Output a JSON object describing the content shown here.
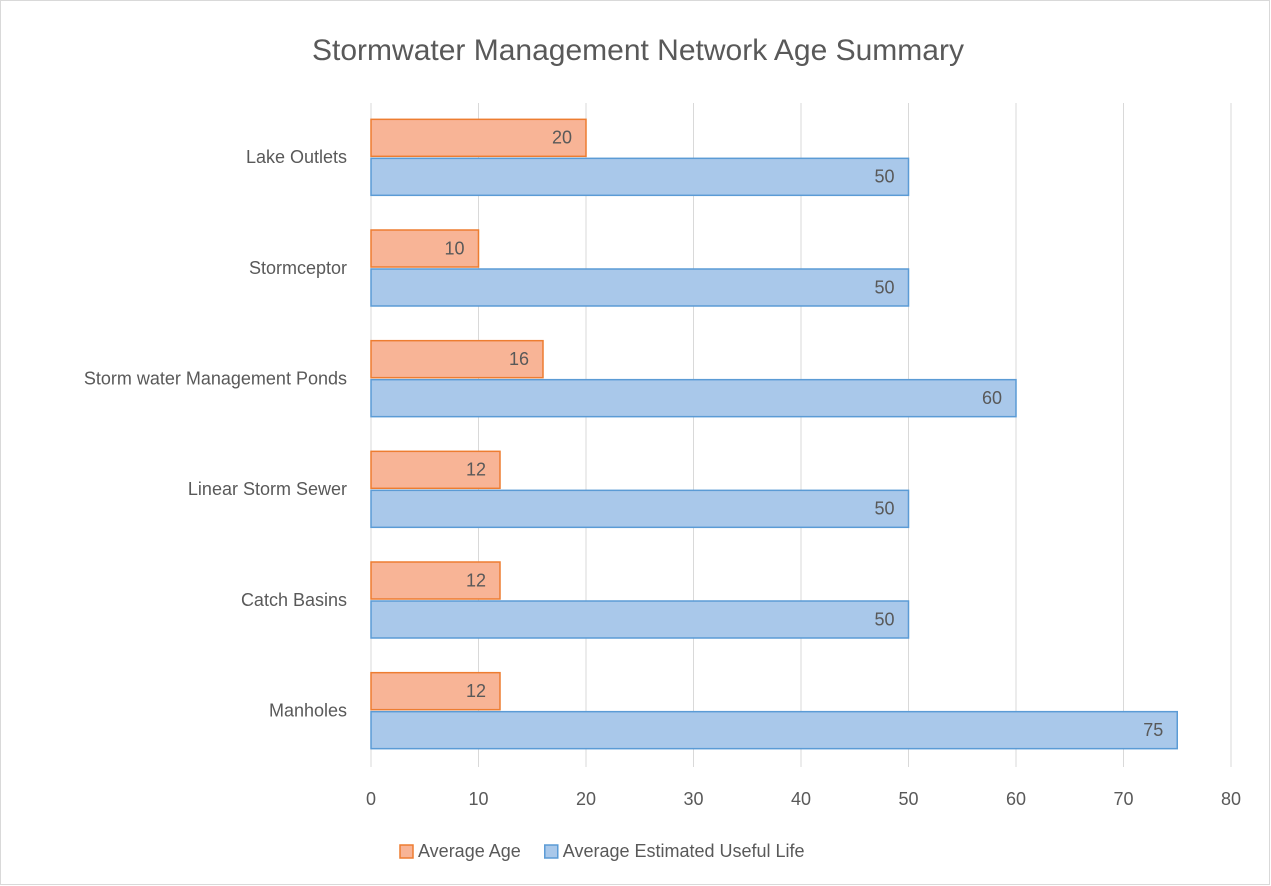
{
  "chart_data": {
    "type": "barh",
    "title": "Stormwater Management Network Age Summary",
    "categories": [
      "Manholes",
      "Catch Basins",
      "Linear Storm Sewer",
      "Storm water Management Ponds",
      "Stormceptor",
      "Lake Outlets"
    ],
    "series": [
      {
        "name": "Average Age",
        "color": "#f8b496",
        "edge_color": "#ed7d31",
        "values": [
          12,
          12,
          12,
          16,
          10,
          20
        ]
      },
      {
        "name": "Average Estimated Useful Life",
        "color": "#a9c8ea",
        "edge_color": "#5b9bd5",
        "values": [
          75,
          50,
          50,
          60,
          50,
          50
        ]
      }
    ],
    "xlim": [
      0,
      80
    ],
    "xticks": [
      0,
      10,
      20,
      30,
      40,
      50,
      60,
      70,
      80
    ],
    "grid": true,
    "legend": "bottom"
  }
}
